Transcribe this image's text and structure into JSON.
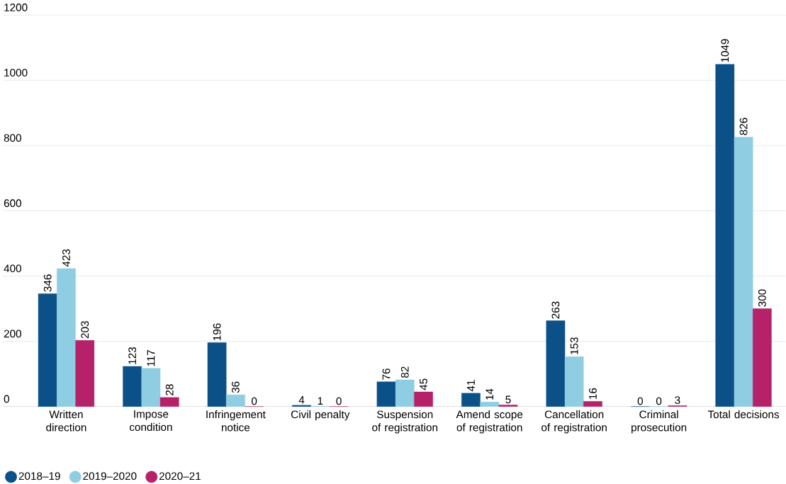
{
  "chart_data": {
    "type": "bar",
    "categories": [
      "Written direction",
      "Impose condition",
      "Infringement notice",
      "Civil penalty",
      "Suspension of registration",
      "Amend scope of registration",
      "Cancellation of registration",
      "Criminal prosecution",
      "Total decisions"
    ],
    "series": [
      {
        "name": "2018–19",
        "color": "#0b5188",
        "values": [
          346,
          123,
          196,
          4,
          76,
          41,
          263,
          0,
          1049
        ]
      },
      {
        "name": "2019–2020",
        "color": "#8fcde3",
        "values": [
          423,
          117,
          36,
          1,
          82,
          14,
          153,
          0,
          826
        ]
      },
      {
        "name": "2020–21",
        "color": "#b5226a",
        "values": [
          203,
          28,
          0,
          0,
          45,
          5,
          16,
          3,
          300
        ]
      }
    ],
    "ylim": [
      0,
      1200
    ],
    "yticks": [
      0,
      200,
      400,
      600,
      800,
      1000,
      1200
    ],
    "grid": "y",
    "legend": "bottom",
    "data_labels": true
  }
}
